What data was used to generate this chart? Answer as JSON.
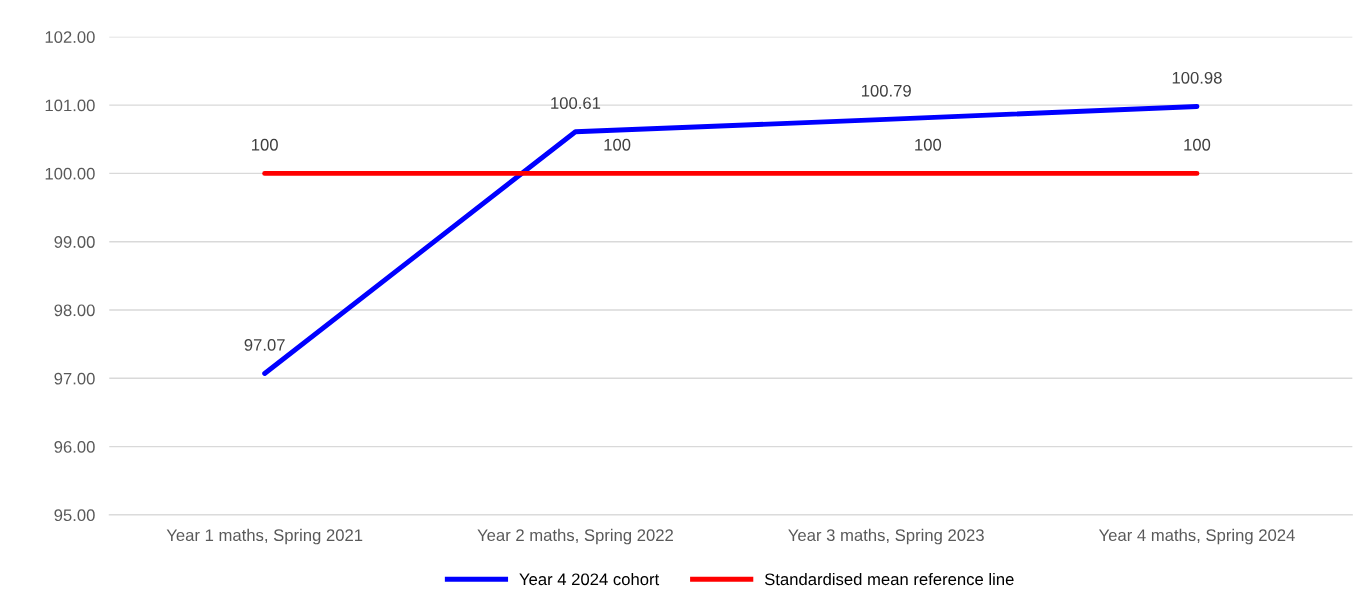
{
  "chart_data": {
    "type": "line",
    "categories": [
      "Year 1 maths, Spring 2021",
      "Year 2 maths, Spring 2022",
      "Year 3 maths, Spring 2023",
      "Year 4 maths, Spring 2024"
    ],
    "series": [
      {
        "name": "Year 4 2024 cohort",
        "color": "#0000ff",
        "values": [
          97.07,
          100.61,
          100.79,
          100.98
        ]
      },
      {
        "name": "Standardised mean reference line",
        "color": "#ff0000",
        "values": [
          100,
          100,
          100,
          100
        ]
      }
    ],
    "ylim": [
      95,
      102
    ],
    "yticks": [
      {
        "value": 95,
        "label": "95.00"
      },
      {
        "value": 96,
        "label": "96.00"
      },
      {
        "value": 97,
        "label": "97.00"
      },
      {
        "value": 98,
        "label": "98.00"
      },
      {
        "value": 99,
        "label": "99.00"
      },
      {
        "value": 100,
        "label": "100.00"
      },
      {
        "value": 101,
        "label": "101.00"
      },
      {
        "value": 102,
        "label": "102.00"
      }
    ],
    "grid": "y",
    "legend": "bottom",
    "data_labels": true,
    "marker": "none",
    "line_style": "solid"
  }
}
